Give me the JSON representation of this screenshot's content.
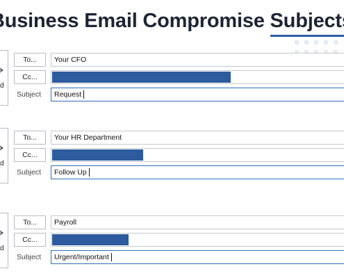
{
  "title": {
    "text": "Business Email Compromise Subjects"
  },
  "emails": [
    {
      "send_label": "Send",
      "to_label": "To...",
      "cc_label": "Cc...",
      "subject_label": "Subject",
      "to_value": "Your CFO",
      "cc_redaction_fraction": 0.61,
      "subject_value": "Request"
    },
    {
      "send_label": "Send",
      "to_label": "To...",
      "cc_label": "Cc...",
      "subject_label": "Subject",
      "to_value": "Your HR Department",
      "cc_redaction_fraction": 0.31,
      "subject_value": "Follow Up"
    },
    {
      "send_label": "Send",
      "to_label": "To...",
      "cc_label": "Cc...",
      "subject_label": "Subject",
      "to_value": "Payroll",
      "cc_redaction_fraction": 0.26,
      "subject_value": "Urgent/Important"
    }
  ],
  "colors": {
    "accent": "#2b5faa",
    "redaction": "#2e5a9e",
    "subject_border": "#2f6fc0"
  }
}
